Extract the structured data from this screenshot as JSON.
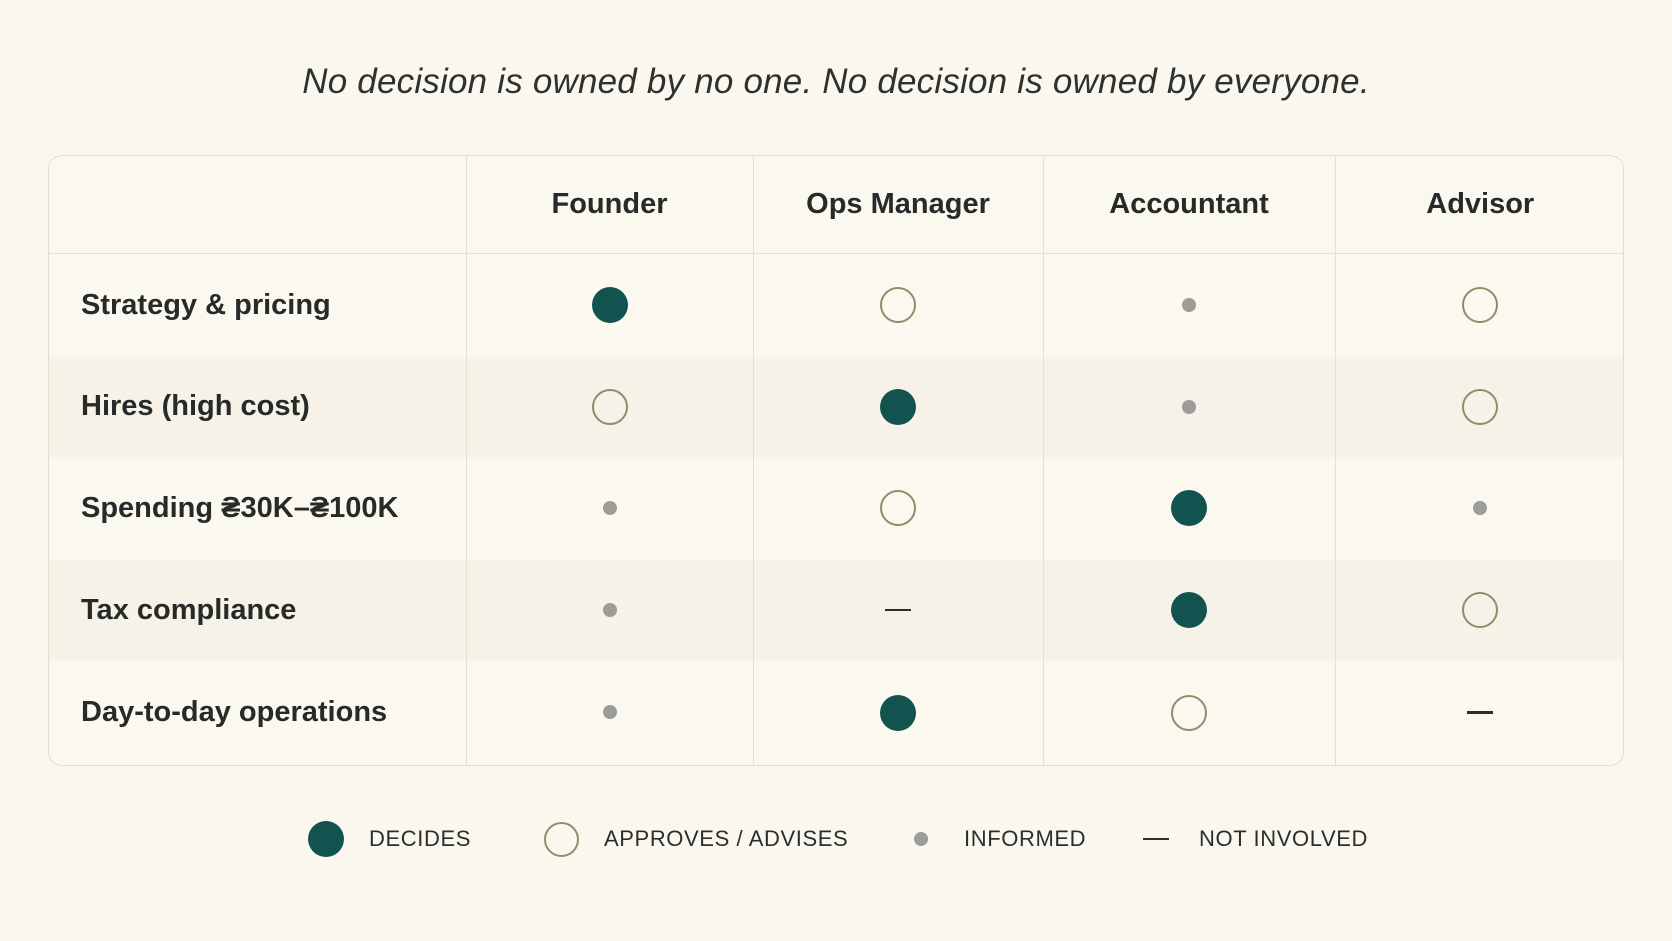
{
  "tagline": "No decision is owned by no one. No decision is owned by everyone.",
  "matrix": {
    "columns": [
      "Founder",
      "Ops Manager",
      "Accountant",
      "Advisor"
    ],
    "rows": [
      {
        "label": "Strategy & pricing",
        "cells": [
          "decides",
          "approves",
          "informed",
          "approves"
        ]
      },
      {
        "label": "Hires (high cost)",
        "cells": [
          "approves",
          "decides",
          "informed",
          "approves"
        ]
      },
      {
        "label": "Spending ₴30K–₴100K",
        "cells": [
          "informed",
          "approves",
          "decides",
          "informed"
        ]
      },
      {
        "label": "Tax compliance",
        "cells": [
          "informed",
          "not-involved",
          "decides",
          "approves"
        ]
      },
      {
        "label": "Day-to-day operations",
        "cells": [
          "informed",
          "decides",
          "approves",
          "not-involved"
        ]
      }
    ]
  },
  "legend": {
    "decides": "DECIDES",
    "approves": "APPROVES / ADVISES",
    "informed": "INFORMED",
    "not_involved": "NOT INVOLVED"
  },
  "colors": {
    "decides": "#13534f",
    "approves": "#8c8f6a",
    "informed": "#9c9c98",
    "background": "#faf7ef"
  }
}
